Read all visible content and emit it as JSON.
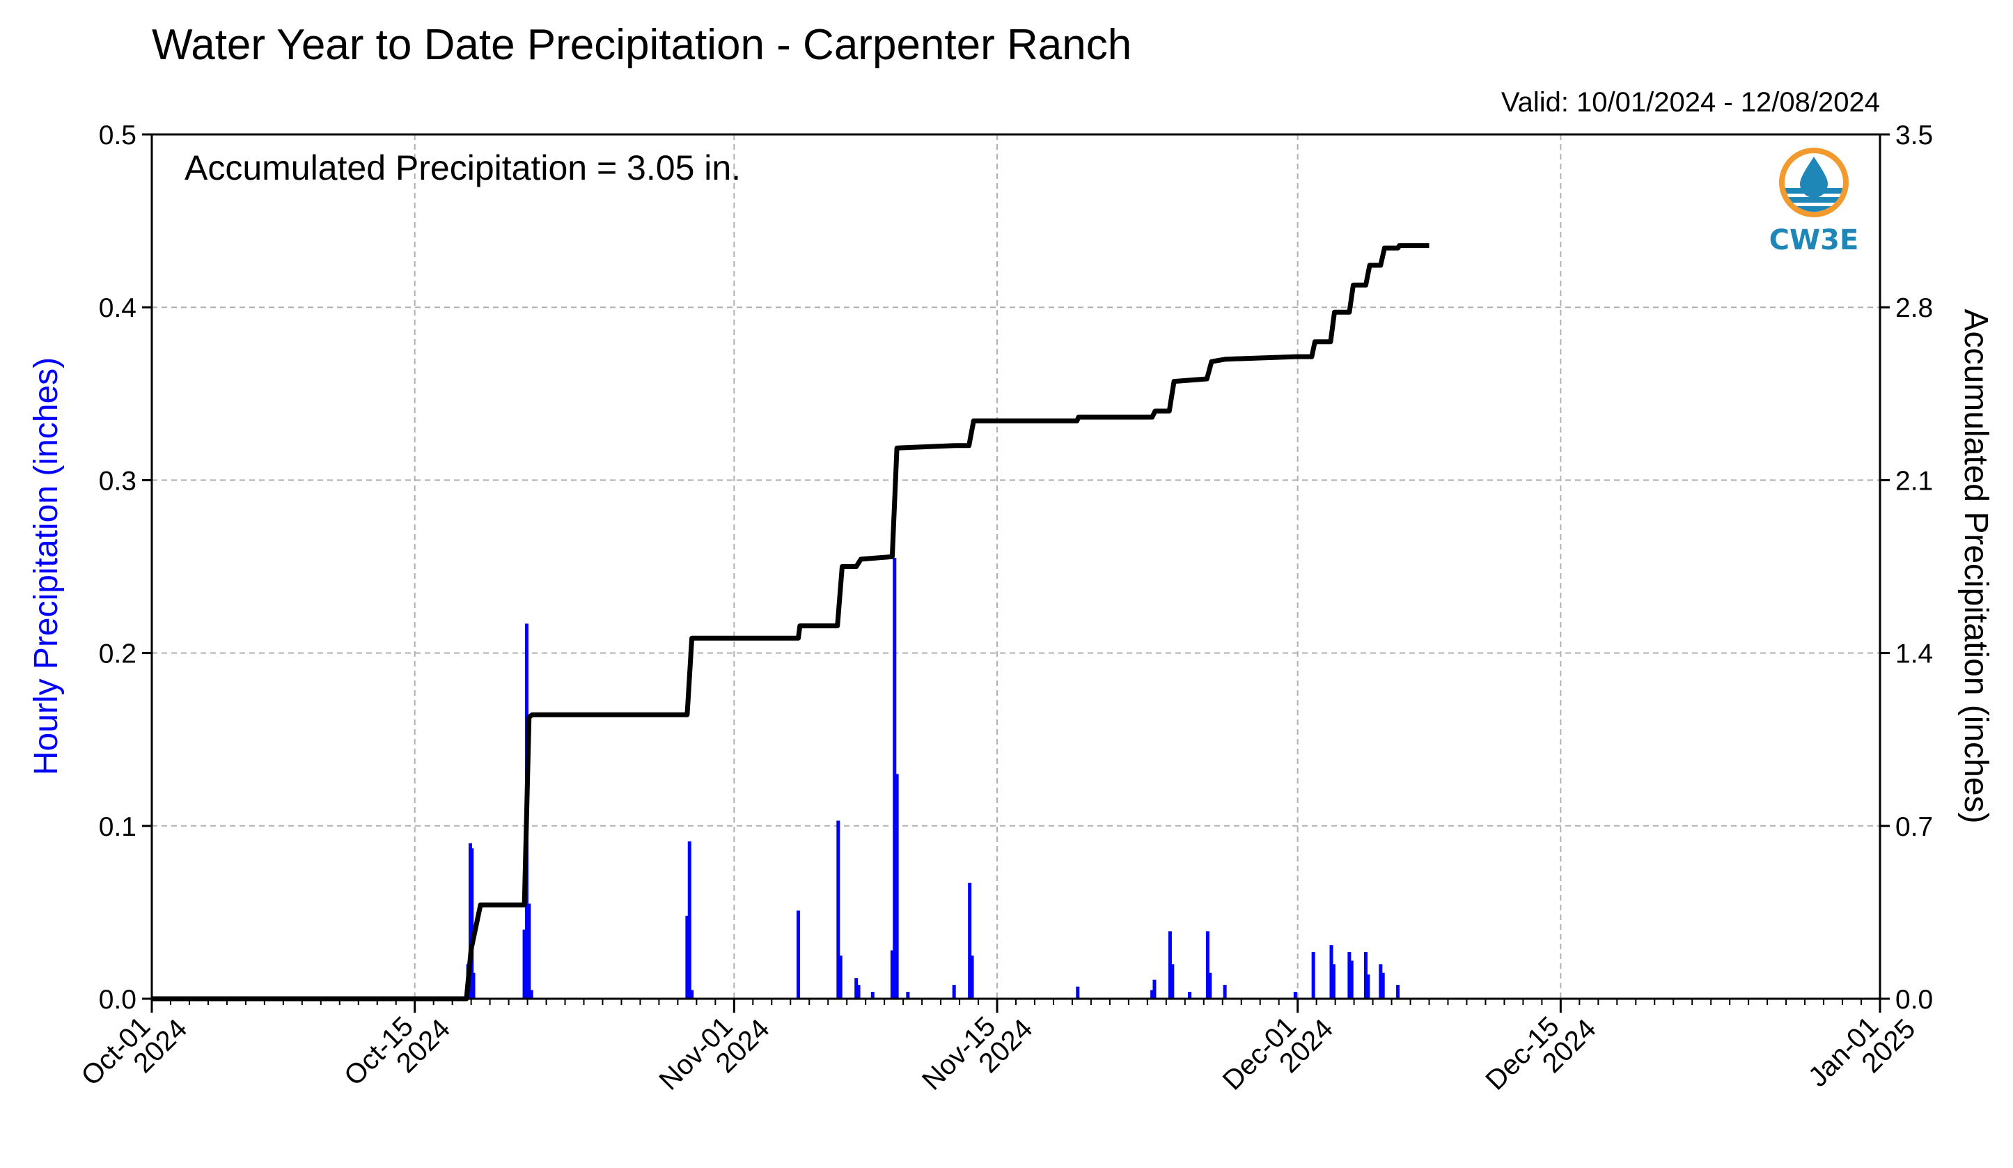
{
  "chart_data": {
    "type": "bar",
    "title": "Water Year to Date Precipitation - Carpenter Ranch",
    "subtitle": "Valid: 10/01/2024 - 12/08/2024",
    "annotation": "Accumulated Precipitation = 3.05 in.",
    "logo_text": "CW3E",
    "ylabel_left": "Hourly Precipitation (inches)",
    "ylabel_right": "Accumulated Precipitation (inches)",
    "x_range": [
      "2024-10-01",
      "2025-01-01"
    ],
    "ylim_left": [
      0,
      0.5
    ],
    "ylim_right": [
      0,
      3.5
    ],
    "grid": true,
    "colors": {
      "hourly": "#0000ff",
      "accumulated": "#000000",
      "grid": "#b0b0b0"
    },
    "y_ticks_left": [
      "0.0",
      "0.1",
      "0.2",
      "0.3",
      "0.4",
      "0.5"
    ],
    "y_ticks_right": [
      "0.0",
      "0.7",
      "1.4",
      "2.1",
      "2.8",
      "3.5"
    ],
    "x_ticks": [
      {
        "date": "2024-10-01",
        "line1": "Oct-01",
        "line2": "2024"
      },
      {
        "date": "2024-10-15",
        "line1": "Oct-15",
        "line2": "2024"
      },
      {
        "date": "2024-11-01",
        "line1": "Nov-01",
        "line2": "2024"
      },
      {
        "date": "2024-11-15",
        "line1": "Nov-15",
        "line2": "2024"
      },
      {
        "date": "2024-12-01",
        "line1": "Dec-01",
        "line2": "2024"
      },
      {
        "date": "2024-12-15",
        "line1": "Dec-15",
        "line2": "2024"
      },
      {
        "date": "2025-01-01",
        "line1": "Jan-01",
        "line2": "2025"
      }
    ],
    "series": [
      {
        "name": "Hourly Precipitation",
        "kind": "bar",
        "axis": "left",
        "points": [
          {
            "x": "2024-10-17 20:00",
            "y": 0.02
          },
          {
            "x": "2024-10-17 23:00",
            "y": 0.09
          },
          {
            "x": "2024-10-18 01:00",
            "y": 0.087
          },
          {
            "x": "2024-10-18 03:00",
            "y": 0.015
          },
          {
            "x": "2024-10-20 20:00",
            "y": 0.04
          },
          {
            "x": "2024-10-20 23:00",
            "y": 0.217
          },
          {
            "x": "2024-10-21 02:00",
            "y": 0.055
          },
          {
            "x": "2024-10-21 05:00",
            "y": 0.005
          },
          {
            "x": "2024-10-29 12:00",
            "y": 0.048
          },
          {
            "x": "2024-10-29 15:00",
            "y": 0.091
          },
          {
            "x": "2024-10-29 18:00",
            "y": 0.005
          },
          {
            "x": "2024-11-04 10:00",
            "y": 0.051
          },
          {
            "x": "2024-11-06 13:00",
            "y": 0.103
          },
          {
            "x": "2024-11-06 16:00",
            "y": 0.025
          },
          {
            "x": "2024-11-07 12:00",
            "y": 0.012
          },
          {
            "x": "2024-11-07 15:00",
            "y": 0.008
          },
          {
            "x": "2024-11-08 09:00",
            "y": 0.004
          },
          {
            "x": "2024-11-09 10:00",
            "y": 0.028
          },
          {
            "x": "2024-11-09 13:00",
            "y": 0.255
          },
          {
            "x": "2024-11-09 16:00",
            "y": 0.13
          },
          {
            "x": "2024-11-10 06:00",
            "y": 0.004
          },
          {
            "x": "2024-11-12 17:00",
            "y": 0.008
          },
          {
            "x": "2024-11-13 13:00",
            "y": 0.067
          },
          {
            "x": "2024-11-13 16:00",
            "y": 0.025
          },
          {
            "x": "2024-11-19 07:00",
            "y": 0.007
          },
          {
            "x": "2024-11-23 06:00",
            "y": 0.005
          },
          {
            "x": "2024-11-23 09:00",
            "y": 0.011
          },
          {
            "x": "2024-11-24 05:00",
            "y": 0.039
          },
          {
            "x": "2024-11-24 08:00",
            "y": 0.02
          },
          {
            "x": "2024-11-25 06:00",
            "y": 0.004
          },
          {
            "x": "2024-11-26 05:00",
            "y": 0.039
          },
          {
            "x": "2024-11-26 08:00",
            "y": 0.015
          },
          {
            "x": "2024-11-27 03:00",
            "y": 0.008
          },
          {
            "x": "2024-11-30 21:00",
            "y": 0.004
          },
          {
            "x": "2024-12-01 20:00",
            "y": 0.027
          },
          {
            "x": "2024-12-02 19:00",
            "y": 0.031
          },
          {
            "x": "2024-12-02 22:00",
            "y": 0.02
          },
          {
            "x": "2024-12-03 18:00",
            "y": 0.027
          },
          {
            "x": "2024-12-03 21:00",
            "y": 0.022
          },
          {
            "x": "2024-12-04 15:00",
            "y": 0.027
          },
          {
            "x": "2024-12-04 18:00",
            "y": 0.014
          },
          {
            "x": "2024-12-05 10:00",
            "y": 0.02
          },
          {
            "x": "2024-12-05 13:00",
            "y": 0.015
          },
          {
            "x": "2024-12-06 08:00",
            "y": 0.008
          }
        ]
      },
      {
        "name": "Accumulated Precipitation",
        "kind": "step-line",
        "axis": "right",
        "points": [
          {
            "x": "2024-10-01 00:00",
            "y": 0.0
          },
          {
            "x": "2024-10-17 18:00",
            "y": 0.0
          },
          {
            "x": "2024-10-18 00:00",
            "y": 0.2
          },
          {
            "x": "2024-10-18 12:00",
            "y": 0.38
          },
          {
            "x": "2024-10-20 20:00",
            "y": 0.38
          },
          {
            "x": "2024-10-21 02:00",
            "y": 1.14
          },
          {
            "x": "2024-10-21 06:00",
            "y": 1.15
          },
          {
            "x": "2024-10-29 12:00",
            "y": 1.15
          },
          {
            "x": "2024-10-29 18:00",
            "y": 1.46
          },
          {
            "x": "2024-11-04 10:00",
            "y": 1.46
          },
          {
            "x": "2024-11-04 12:00",
            "y": 1.51
          },
          {
            "x": "2024-11-06 12:00",
            "y": 1.51
          },
          {
            "x": "2024-11-06 18:00",
            "y": 1.75
          },
          {
            "x": "2024-11-07 12:00",
            "y": 1.75
          },
          {
            "x": "2024-11-07 18:00",
            "y": 1.78
          },
          {
            "x": "2024-11-09 10:00",
            "y": 1.79
          },
          {
            "x": "2024-11-09 16:00",
            "y": 2.23
          },
          {
            "x": "2024-11-12 18:00",
            "y": 2.24
          },
          {
            "x": "2024-11-13 12:00",
            "y": 2.24
          },
          {
            "x": "2024-11-13 18:00",
            "y": 2.34
          },
          {
            "x": "2024-11-19 06:00",
            "y": 2.34
          },
          {
            "x": "2024-11-19 08:00",
            "y": 2.355
          },
          {
            "x": "2024-11-23 06:00",
            "y": 2.355
          },
          {
            "x": "2024-11-23 10:00",
            "y": 2.38
          },
          {
            "x": "2024-11-24 04:00",
            "y": 2.38
          },
          {
            "x": "2024-11-24 10:00",
            "y": 2.5
          },
          {
            "x": "2024-11-26 04:00",
            "y": 2.51
          },
          {
            "x": "2024-11-26 10:00",
            "y": 2.58
          },
          {
            "x": "2024-11-27 04:00",
            "y": 2.59
          },
          {
            "x": "2024-11-30 22:00",
            "y": 2.6
          },
          {
            "x": "2024-12-01 18:00",
            "y": 2.6
          },
          {
            "x": "2024-12-01 22:00",
            "y": 2.66
          },
          {
            "x": "2024-12-02 18:00",
            "y": 2.66
          },
          {
            "x": "2024-12-02 23:00",
            "y": 2.78
          },
          {
            "x": "2024-12-03 18:00",
            "y": 2.78
          },
          {
            "x": "2024-12-03 23:00",
            "y": 2.89
          },
          {
            "x": "2024-12-04 15:00",
            "y": 2.89
          },
          {
            "x": "2024-12-04 20:00",
            "y": 2.97
          },
          {
            "x": "2024-12-05 10:00",
            "y": 2.97
          },
          {
            "x": "2024-12-05 15:00",
            "y": 3.04
          },
          {
            "x": "2024-12-06 08:00",
            "y": 3.04
          },
          {
            "x": "2024-12-06 10:00",
            "y": 3.05
          },
          {
            "x": "2024-12-08 00:00",
            "y": 3.05
          }
        ]
      }
    ]
  }
}
